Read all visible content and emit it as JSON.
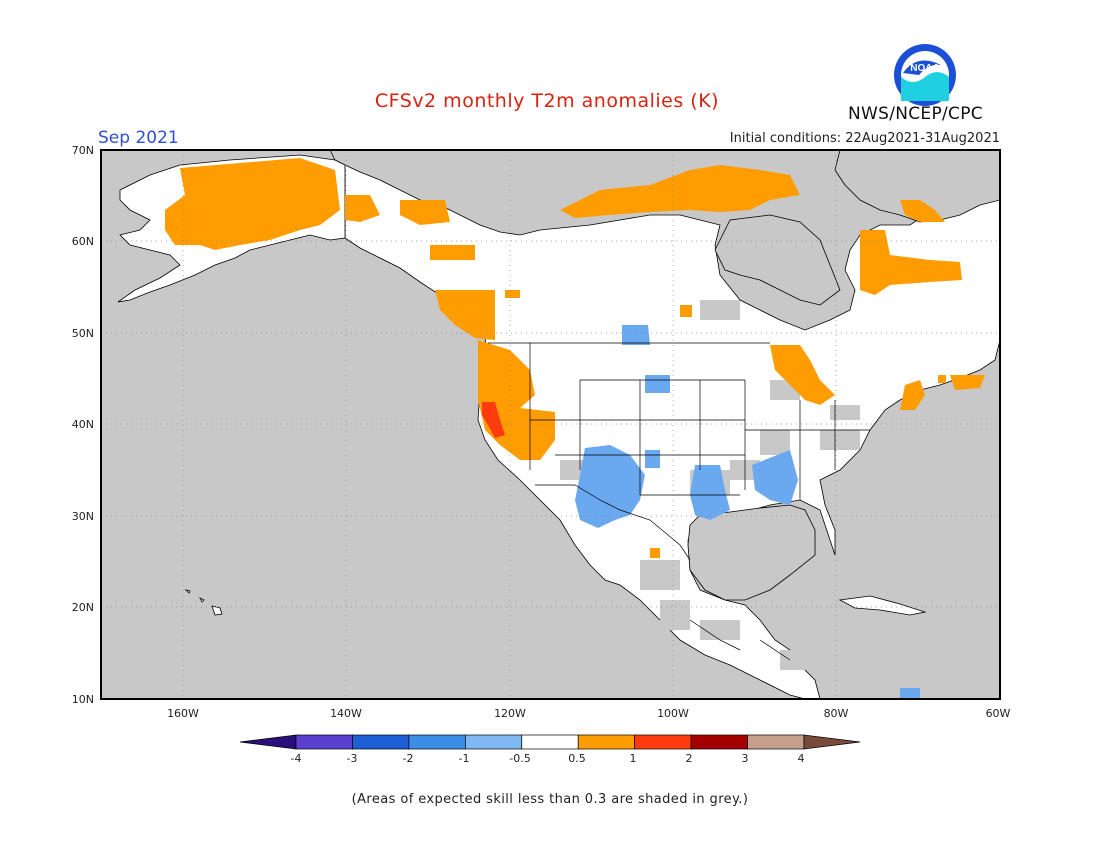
{
  "header": {
    "title": "CFSv2 monthly T2m anomalies (K)",
    "month": "Sep 2021",
    "initial_conditions": "Initial conditions: 22Aug2021-31Aug2021",
    "organization": "NWS/NCEP/CPC",
    "logo_text": "NOAA"
  },
  "axes": {
    "lat_labels": [
      "70N",
      "60N",
      "50N",
      "40N",
      "30N",
      "20N",
      "10N"
    ],
    "lon_labels": [
      "160W",
      "140W",
      "120W",
      "100W",
      "80W",
      "60W"
    ],
    "lat_range": [
      10,
      70
    ],
    "lon_range": [
      -170,
      -60
    ]
  },
  "colorbar": {
    "tick_labels": [
      "-4",
      "-3",
      "-2",
      "-1",
      "-0.5",
      "0.5",
      "1",
      "2",
      "3",
      "4"
    ],
    "colors": [
      "#2a0f7a",
      "#5a3fd0",
      "#1f5fd6",
      "#3b8de6",
      "#7fb8f2",
      "#ffffff",
      "#ff9c00",
      "#ff3a0f",
      "#a50000",
      "#c4a08c",
      "#7a4a3a"
    ]
  },
  "legend": {
    "skill_grey_color": "#c8c8c8",
    "note": "(Areas of expected skill less than 0.3 are shaded in grey.)"
  },
  "colors": {
    "ocean_grey": "#c8c8c8",
    "land_white": "#ffffff",
    "warm_orange": "#ff9c00",
    "hot_red": "#ff3a0f",
    "cool_blue": "#6aa8f0"
  }
}
